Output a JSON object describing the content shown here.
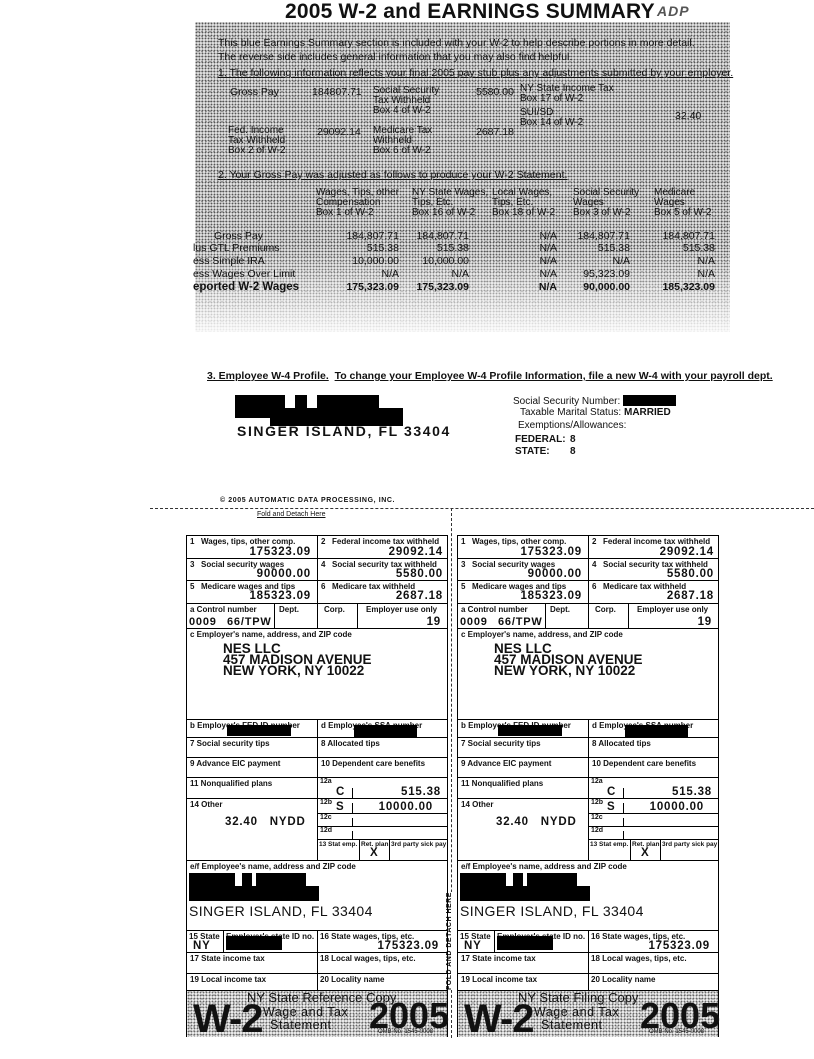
{
  "summary": {
    "title": "2005 W-2 and EARNINGS SUMMARY",
    "logo": "ADP",
    "intro": [
      "This blue Earnings Summary section is included with your W-2 to help describe portions in more detail.",
      "The reverse side includes general information that you may also find helpful."
    ],
    "section1_heading": "1. The following information reflects your final 2005 pay stub plus any adjustments submitted by your employer.",
    "section1": {
      "gross_pay_label": "Gross Pay",
      "gross_pay_value": "184807.71",
      "ss_label": [
        "Social Security",
        "Tax Withheld",
        "Box 4 of W-2"
      ],
      "ss_value": "5580.00",
      "ny_label": [
        "NY State Income Tax",
        "Box 17 of W-2"
      ],
      "sui_label": [
        "SUI/SD",
        "Box 14 of W-2"
      ],
      "sui_value": "32.40",
      "fed_label": [
        "Fed. Income",
        "Tax Withheld",
        "Box 2 of W-2"
      ],
      "fed_value": "29092.14",
      "medicare_label": [
        "Medicare Tax",
        "Withheld",
        "Box 6 of W-2"
      ],
      "medicare_value": "2687.18"
    },
    "section2_heading": "2. Your Gross Pay was adjusted as follows to produce your W-2 Statement.",
    "columns": [
      [
        "Wages, Tips, other",
        "Compensation",
        "Box 1 of W-2"
      ],
      [
        "NY State Wages,",
        "Tips, Etc.",
        "Box 16 of W-2"
      ],
      [
        "Local Wages,",
        "Tips, Etc.",
        "Box 18 of W-2"
      ],
      [
        "Social Security",
        "Wages",
        "Box 3 of W-2"
      ],
      [
        "Medicare",
        "Wages",
        "Box 5 of W-2"
      ]
    ],
    "rows": [
      {
        "label": "Gross Pay",
        "values": [
          "184,807.71",
          "184,807.71",
          "N/A",
          "184,807.71",
          "184,807.71"
        ]
      },
      {
        "label": "lus GTL Premiums",
        "values": [
          "515.38",
          "515.38",
          "N/A",
          "515.38",
          "515.38"
        ]
      },
      {
        "label": "ess Simple IRA",
        "values": [
          "10,000.00",
          "10,000.00",
          "N/A",
          "N/A",
          "N/A"
        ]
      },
      {
        "label": "ess Wages Over Limit",
        "values": [
          "N/A",
          "N/A",
          "N/A",
          "95,323.09",
          "N/A"
        ]
      },
      {
        "label": "eported W-2 Wages",
        "values": [
          "175,323.09",
          "175,323.09",
          "N/A",
          "90,000.00",
          "185,323.09"
        ]
      }
    ]
  },
  "w4": {
    "heading": "3. Employee W-4 Profile.",
    "heading_note": "To change your Employee W-4 Profile Information, file a new W-4 with your payroll dept.",
    "city": "SINGER ISLAND, FL 33404",
    "ssn_label": "Social Security Number:",
    "marital_label": "Taxable Marital Status:",
    "marital_value": "MARRIED",
    "exemptions_label": "Exemptions/Allowances:",
    "federal_label": "FEDERAL:",
    "federal_value": "8",
    "state_label": "STATE:",
    "state_value": "8"
  },
  "copyright": "© 2005 AUTOMATIC DATA PROCESSING, INC.",
  "fold_text": "Fold and Detach Here",
  "fold_vertical": "FOLD AND DETACH HERE",
  "w2_forms": [
    {
      "b1_num": "1",
      "b1_label": "Wages, tips, other comp.",
      "b1_value": "175323.09",
      "b2_num": "2",
      "b2_label": "Federal income tax withheld",
      "b2_value": "29092.14",
      "b3_num": "3",
      "b3_label": "Social security wages",
      "b3_value": "90000.00",
      "b4_num": "4",
      "b4_label": "Social security tax withheld",
      "b4_value": "5580.00",
      "b5_num": "5",
      "b5_label": "Medicare wages and tips",
      "b5_value": "185323.09",
      "b6_num": "6",
      "b6_label": "Medicare tax withheld",
      "b6_value": "2687.18",
      "a_label": "a  Control number",
      "dept_label": "Dept.",
      "corp_label": "Corp.",
      "emp_use_label": "Employer use only",
      "control_value": "0009",
      "control_code": "66/TPW",
      "emp_use_value": "19",
      "c_label": "c  Employer's name, address, and ZIP code",
      "employer": [
        "NES LLC",
        "457 MADISON AVENUE",
        "NEW YORK, NY 10022"
      ],
      "b_label": "b  Employer's FED ID number",
      "d_label": "d  Employee's SSA number",
      "b7_label": "7  Social security tips",
      "b8_label": "8  Allocated tips",
      "b9_label": "9  Advance EIC payment",
      "b10_label": "10 Dependent care benefits",
      "b11_label": "11 Nonqualified plans",
      "b12a_label": "12a",
      "b12a_code": "C",
      "b12a_value": "515.38",
      "b14_label": "14 Other",
      "b14_value": "32.40   NYDD",
      "b12b_label": "12b",
      "b12b_code": "S",
      "b12b_value": "10000.00",
      "b12c_label": "12c",
      "b12d_label": "12d",
      "b13_label": "13 Stat emp.",
      "b13_ret": "Ret. plan",
      "b13_sick": "3rd party sick pay",
      "b13_mark": "X",
      "ef_label": "e/f  Employee's name, address and ZIP code",
      "employee_city": "SINGER ISLAND, FL 33404",
      "b15_label": "15 State",
      "b15_id_label": "Employer's state ID no.",
      "b15_value": "NY",
      "b16_label": "16 State wages, tips, etc.",
      "b16_value": "175323.09",
      "b17_label": "17 State income tax",
      "b18_label": "18 Local wages, tips, etc.",
      "b19_label": "19 Local income tax",
      "b20_label": "20 Locality name",
      "copy_label": "NY State Reference Copy",
      "form_name": "W-2",
      "form_desc1": "Wage and Tax",
      "form_desc2": "Statement",
      "year": "2005",
      "omb": "OMB No. 1545-0008"
    },
    {
      "b1_num": "1",
      "b1_label": "Wages, tips, other comp.",
      "b1_value": "175323.09",
      "b2_num": "2",
      "b2_label": "Federal income tax withheld",
      "b2_value": "29092.14",
      "b3_num": "3",
      "b3_label": "Social security wages",
      "b3_value": "90000.00",
      "b4_num": "4",
      "b4_label": "Social security tax withheld",
      "b4_value": "5580.00",
      "b5_num": "5",
      "b5_label": "Medicare wages and tips",
      "b5_value": "185323.09",
      "b6_num": "6",
      "b6_label": "Medicare tax withheld",
      "b6_value": "2687.18",
      "a_label": "a  Control number",
      "dept_label": "Dept.",
      "corp_label": "Corp.",
      "emp_use_label": "Employer use only",
      "control_value": "0009",
      "control_code": "66/TPW",
      "emp_use_value": "19",
      "c_label": "c  Employer's name, address, and ZIP code",
      "employer": [
        "NES LLC",
        "457 MADISON AVENUE",
        "NEW YORK, NY 10022"
      ],
      "b_label": "b  Employer's FED ID number",
      "d_label": "d  Employee's SSA number",
      "b7_label": "7  Social security tips",
      "b8_label": "8  Allocated tips",
      "b9_label": "9  Advance EIC payment",
      "b10_label": "10 Dependent care benefits",
      "b11_label": "11 Nonqualified plans",
      "b12a_label": "12a",
      "b12a_code": "C",
      "b12a_value": "515.38",
      "b14_label": "14 Other",
      "b14_value": "32.40   NYDD",
      "b12b_label": "12b",
      "b12b_code": "S",
      "b12b_value": "10000.00",
      "b12c_label": "12c",
      "b12d_label": "12d",
      "b13_label": "13 Stat emp.",
      "b13_ret": "Ret. plan",
      "b13_sick": "3rd party sick pay",
      "b13_mark": "X",
      "ef_label": "e/f  Employee's name, address and ZIP code",
      "employee_city": "SINGER ISLAND, FL 33404",
      "b15_label": "15 State",
      "b15_id_label": "Employer's state ID no.",
      "b15_value": "NY",
      "b16_label": "16 State wages, tips, etc.",
      "b16_value": "175323.09",
      "b17_label": "17 State income tax",
      "b18_label": "18 Local wages, tips, etc.",
      "b19_label": "19 Local income tax",
      "b20_label": "20 Locality name",
      "copy_label": "NY State Filing Copy",
      "form_name": "W-2",
      "form_desc1": "Wage and Tax",
      "form_desc2": "Statement",
      "year": "2005",
      "omb": "OMB No. 1545-0008"
    }
  ]
}
